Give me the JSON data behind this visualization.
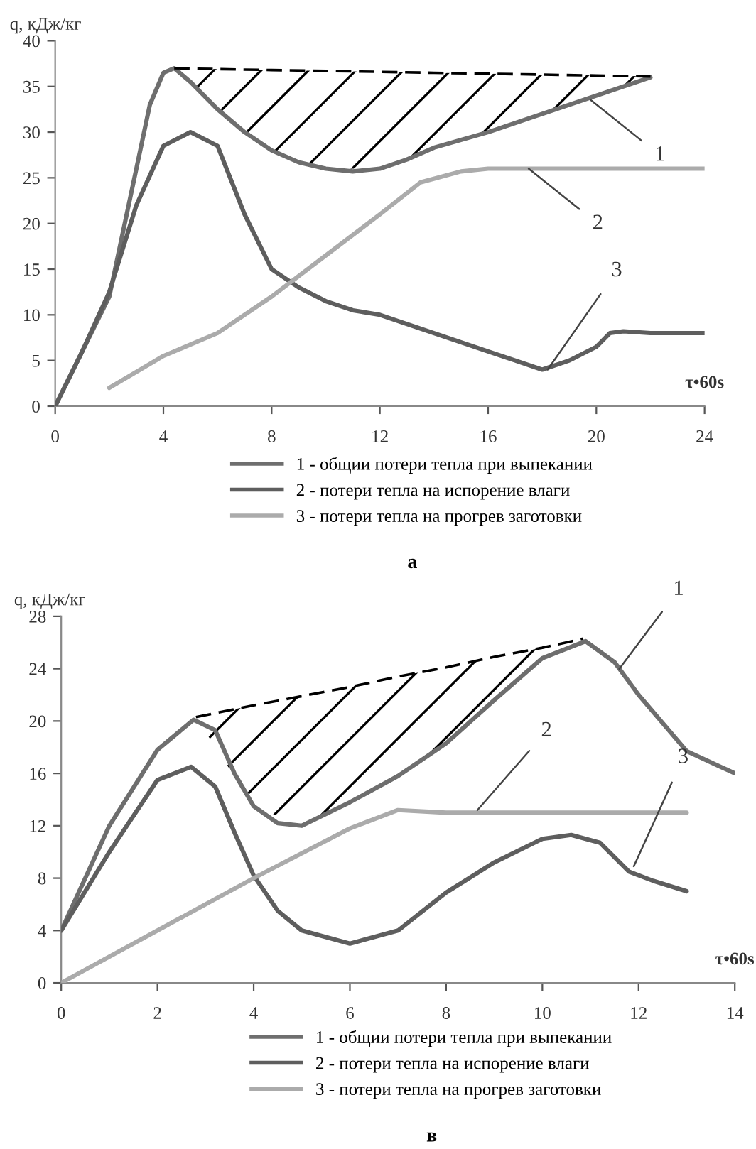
{
  "chart_data": [
    {
      "type": "line",
      "title": "а",
      "ylabel": "q, кДж/кг",
      "xlabel": "τ•60s",
      "xlim": [
        0,
        24
      ],
      "ylim": [
        0,
        40
      ],
      "xticks": [
        0,
        4,
        8,
        12,
        16,
        20,
        24
      ],
      "yticks": [
        0,
        5,
        10,
        15,
        20,
        25,
        30,
        35,
        40
      ],
      "grid": false,
      "legend": "bottom",
      "marker": "none",
      "series": [
        {
          "name": "1 - общии потери тепла при выпекании",
          "color": "#6e6e6e",
          "x": [
            0,
            1,
            2,
            3,
            3.5,
            4,
            4.4,
            5,
            6,
            7,
            8,
            9,
            10,
            11,
            12,
            13,
            14,
            16,
            18,
            20,
            22
          ],
          "values": [
            0,
            6,
            12,
            26,
            33,
            36.5,
            37,
            35.5,
            32.5,
            30,
            28,
            26.7,
            26,
            25.7,
            26,
            27,
            28.3,
            30,
            32,
            34,
            36
          ]
        },
        {
          "name": "2 - потери тепла на испорение влаги",
          "color": "#5e5e5e",
          "x": [
            0,
            1,
            2,
            3,
            4,
            5,
            6,
            7,
            8,
            9,
            10,
            11,
            12,
            14,
            16,
            17,
            18,
            19,
            20,
            20.5,
            21,
            22,
            24
          ],
          "values": [
            0,
            6,
            12.5,
            22,
            28.5,
            30,
            28.5,
            21,
            15,
            13,
            11.5,
            10.5,
            10,
            8,
            6,
            5,
            4,
            5,
            6.5,
            8,
            8.2,
            8,
            8
          ]
        },
        {
          "name": "3 - потери тепла на прогрев заготовки",
          "color": "#ababab",
          "x": [
            2,
            4,
            6,
            8,
            10,
            12,
            13.5,
            15,
            16,
            24
          ],
          "values": [
            2,
            5.5,
            8,
            12,
            16.5,
            21,
            24.5,
            25.7,
            26,
            26
          ]
        },
        {
          "color": "#000000",
          "line_style": "dashed",
          "x": [
            4.4,
            6,
            8,
            10,
            12,
            14,
            16,
            18,
            20,
            22
          ],
          "values": [
            37,
            36.9,
            36.8,
            36.7,
            36.6,
            36.5,
            36.4,
            36.3,
            36.2,
            36.1
          ],
          "upper": [
            37,
            36.9,
            36.8,
            36.7,
            36.6,
            36.5,
            36.4,
            36.3,
            36.2,
            36.1
          ],
          "lower": [
            37,
            32.5,
            28,
            26,
            26,
            28.3,
            30,
            32,
            34,
            36
          ]
        }
      ],
      "annotations": [
        {
          "text": "1",
          "x": 19.8,
          "y": 33.5
        },
        {
          "text": "2",
          "x": 17.5,
          "y": 26
        },
        {
          "text": "3",
          "x": 18.2,
          "y": 4
        }
      ]
    },
    {
      "type": "line",
      "title": "в",
      "ylabel": "q, кДж/кг",
      "xlabel": "τ•60s",
      "xlim": [
        0,
        14
      ],
      "ylim": [
        0,
        28
      ],
      "xticks": [
        0,
        2,
        4,
        6,
        8,
        10,
        12,
        14
      ],
      "yticks": [
        0,
        4,
        8,
        12,
        16,
        20,
        24,
        28
      ],
      "grid": false,
      "legend": "bottom",
      "marker": "none",
      "series": [
        {
          "name": "1 - общии потери тепла при выпекании",
          "color": "#6e6e6e",
          "x": [
            0,
            1,
            2,
            2.75,
            3.2,
            3.6,
            4,
            4.5,
            5,
            6,
            7,
            8,
            9,
            10,
            10.9,
            11.5,
            12,
            13,
            14
          ],
          "values": [
            4,
            12,
            17.8,
            20.1,
            19.3,
            16,
            13.5,
            12.2,
            12,
            13.8,
            15.8,
            18.3,
            21.6,
            24.8,
            26.1,
            24.5,
            22,
            17.7,
            16
          ]
        },
        {
          "name": "2 - потери тепла на испорение влаги",
          "color": "#5e5e5e",
          "x": [
            0,
            1,
            2,
            2.7,
            3.2,
            3.6,
            4,
            4.5,
            5,
            6,
            7,
            8,
            9,
            10,
            10.6,
            11.2,
            11.8,
            12.3,
            13
          ],
          "values": [
            4,
            10,
            15.5,
            16.5,
            15,
            11.5,
            8.2,
            5.5,
            4,
            3,
            4,
            6.9,
            9.2,
            11,
            11.3,
            10.7,
            8.5,
            7.8,
            7
          ]
        },
        {
          "name": "3 - потери тепла на прогрев заготовки",
          "color": "#ababab",
          "x": [
            0,
            2,
            4,
            6,
            7,
            8,
            13
          ],
          "values": [
            0,
            4,
            8,
            11.8,
            13.2,
            13,
            13
          ]
        },
        {
          "color": "#000000",
          "line_style": "dashed",
          "x": [
            2.8,
            4,
            5,
            6,
            7,
            8,
            9,
            10,
            10.85
          ],
          "values": [
            20.3,
            21.2,
            21.9,
            22.6,
            23.4,
            24.1,
            24.9,
            25.6,
            26.3
          ],
          "upper": [
            20.3,
            21.2,
            21.9,
            22.6,
            23.4,
            24.1,
            24.9,
            25.6,
            26.3
          ],
          "lower": [
            20.3,
            13.5,
            12,
            13.8,
            15.8,
            18.3,
            21.6,
            24.8,
            26.2
          ]
        }
      ],
      "annotations": [
        {
          "text": "1",
          "x": 11.6,
          "y": 24
        },
        {
          "text": "2",
          "x": 8.65,
          "y": 13.2
        },
        {
          "text": "3",
          "x": 11.9,
          "y": 8.9
        }
      ]
    }
  ]
}
